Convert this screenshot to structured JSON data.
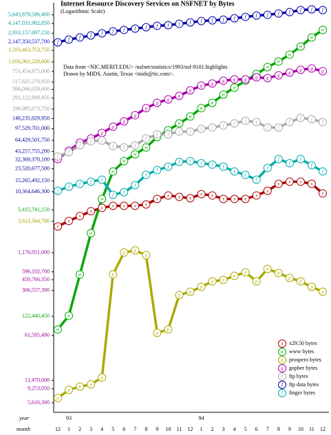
{
  "chart_data": {
    "type": "line",
    "title": "Internet Resource Discovery Services on NSFNET by Bytes",
    "subtitle": "(Logarithmic Scale)",
    "annotations": [
      "Data from <NIC.MERIT.EDU> /nsfnet/statistics/1993/nsf-9101.highlights",
      "Drawn by MIDS, Austin, Texas <mids@tic.com>."
    ],
    "year_label": "year",
    "month_label": "month",
    "years": [
      null,
      "93",
      null,
      null,
      null,
      null,
      null,
      null,
      null,
      null,
      null,
      null,
      null,
      "94",
      null,
      null,
      null,
      null,
      null,
      null,
      null,
      null,
      null,
      null,
      null
    ],
    "categories": [
      "12",
      "1",
      "2",
      "3",
      "4",
      "5",
      "6",
      "7",
      "8",
      "9",
      "10",
      "11",
      "12",
      "1",
      "2",
      "3",
      "4",
      "5",
      "6",
      "7",
      "8",
      "9",
      "10",
      "11",
      "12"
    ],
    "log_scale": true,
    "legend": "lower right",
    "ylim": [
      4000000,
      7500000000000
    ],
    "yticks": [
      {
        "value": 5643879586400,
        "label": "5,643,879,586,400",
        "color": "#009999"
      },
      {
        "value": 4147031902850,
        "label": "4,147,031,902,850",
        "color": "#009999"
      },
      {
        "value": 2933157697150,
        "label": "2,933,157,697,150",
        "color": "#009999"
      },
      {
        "value": 2147350537700,
        "label": "2,147,350,537,700",
        "color": "#0000cc"
      },
      {
        "value": 1593463753750,
        "label": "1,593,463,753,750",
        "color": "#a0a000"
      },
      {
        "value": 1056061229600,
        "label": "1,056,061,229,600",
        "color": "#a0a000"
      },
      {
        "value": 751454675000,
        "label": "751,454,675,000",
        "color": "#999999"
      },
      {
        "value": 517625276950,
        "label": "517,625,276,950",
        "color": "#999999"
      },
      {
        "value": 396066059600,
        "label": "396,066,059,600",
        "color": "#999999"
      },
      {
        "value": 291122949450,
        "label": "291,122,949,450",
        "color": "#999999"
      },
      {
        "value": 196095673750,
        "label": "196,095,673,750",
        "color": "#999999"
      },
      {
        "value": 140235929950,
        "label": "140,235,929,950",
        "color": "#000099"
      },
      {
        "value": 97529701000,
        "label": "97,529,701,000",
        "color": "#000099"
      },
      {
        "value": 64429501750,
        "label": "64,429,501,750",
        "color": "#000099"
      },
      {
        "value": 43257755200,
        "label": "43,257,755,200",
        "color": "#000099"
      },
      {
        "value": 32369370100,
        "label": "32,369,370,100",
        "color": "#000099"
      },
      {
        "value": 23520677500,
        "label": "23,520,677,500",
        "color": "#000099"
      },
      {
        "value": 15265492150,
        "label": "15,265,492,150",
        "color": "#000099"
      },
      {
        "value": 10364646300,
        "label": "10,364,646,300",
        "color": "#000099"
      },
      {
        "value": 5415741150,
        "label": "5,415,741,150",
        "color": "#00a000"
      },
      {
        "value": 3613564700,
        "label": "3,613,564,700",
        "color": "#a0a000"
      },
      {
        "value": 1176051600,
        "label": "1,176,051,600",
        "color": "#990099"
      },
      {
        "value": 596102700,
        "label": "596,102,700",
        "color": "#990099"
      },
      {
        "value": 450766350,
        "label": "450,766,350",
        "color": "#990099"
      },
      {
        "value": 306557300,
        "label": "306,557,300",
        "color": "#990099"
      },
      {
        "value": 122440450,
        "label": "122,440,450",
        "color": "#00a000"
      },
      {
        "value": 61595490,
        "label": "61,595,490",
        "color": "#990099"
      },
      {
        "value": 12470600,
        "label": "12,470,600",
        "color": "#990099"
      },
      {
        "value": 9253050,
        "label": "9,253,050",
        "color": "#990099"
      },
      {
        "value": 5616300,
        "label": "5,616,300",
        "color": "#990099"
      }
    ],
    "series": [
      {
        "name": "x29.50 bytes",
        "marker": "x",
        "color": "#aa0000",
        "values": [
          3010000000.0,
          3660000000.0,
          4350000000.0,
          5160000000.0,
          5820000000.0,
          6270000000.0,
          6270000000.0,
          6270000000.0,
          6580000000.0,
          8000000000.0,
          9060000000.0,
          8610000000.0,
          8200000000.0,
          9500000000.0,
          9060000000.0,
          8000000000.0,
          8000000000.0,
          8000000000.0,
          9060000000.0,
          10700000000.0,
          13700000000.0,
          14800000000.0,
          14800000000.0,
          13700000000.0,
          9750000000.0
        ]
      },
      {
        "name": "www bytes",
        "marker": "w",
        "color": "#00a800",
        "values": [
          76600000.0,
          125000000.0,
          543000000.0,
          2360000000.0,
          8000000000.0,
          21300000000.0,
          30800000000.0,
          39300000000.0,
          50200000000.0,
          72500000000.0,
          92500000000.0,
          118000000000.0,
          151000000000.0,
          203000000000.0,
          246000000000.0,
          330000000000.0,
          422000000000.0,
          539000000000.0,
          688000000000.0,
          879000000000.0,
          1070000000000.0,
          1370000000000.0,
          1830000000000.0,
          2520000000000.0,
          3300000000000.0
        ]
      },
      {
        "name": "prospero bytes",
        "marker": "p",
        "color": "#aaaa00",
        "values": [
          6640000.0,
          8900000.0,
          10000000.0,
          10800000.0,
          13800000.0,
          543000000.0,
          1190000000.0,
          1280000000.0,
          1080000000.0,
          67800000.0,
          76600000.0,
          261000000.0,
          294000000.0,
          349000000.0,
          425000000.0,
          447000000.0,
          517000000.0,
          584000000.0,
          425000000.0,
          660000000.0,
          570000000.0,
          480000000.0,
          425000000.0,
          349000000.0,
          294000000.0
        ]
      },
      {
        "name": "gopher bytes",
        "marker": "g",
        "color": "#aa00aa",
        "values": [
          33100000000.0,
          44500000000.0,
          59600000000.0,
          69000000000.0,
          84000000000.0,
          105000000000.0,
          127000000000.0,
          158000000000.0,
          203000000000.0,
          246000000000.0,
          278000000000.0,
          315000000000.0,
          383000000000.0,
          454000000000.0,
          489000000000.0,
          539000000000.0,
          566000000000.0,
          566000000000.0,
          610000000000.0,
          594000000000.0,
          655000000000.0,
          722000000000.0,
          796000000000.0,
          837000000000.0,
          759000000000.0
        ]
      },
      {
        "name": "ftp bytes",
        "marker": "f",
        "color": "#aaaaaa",
        "values": [
          36500000000.0,
          42300000000.0,
          54000000000.0,
          62600000000.0,
          64100000000.0,
          52700000000.0,
          50200000000.0,
          54000000000.0,
          69000000000.0,
          80000000000.0,
          80000000000.0,
          88100000000.0,
          88100000000.0,
          97200000000.0,
          102000000000.0,
          110000000000.0,
          118000000000.0,
          130000000000.0,
          124000000000.0,
          102000000000.0,
          102000000000.0,
          124000000000.0,
          144000000000.0,
          137000000000.0,
          124000000000.0
        ]
      },
      {
        "name": "ftp data bytes",
        "marker": "f",
        "color": "#0000aa",
        "values": [
          2120000000000.0,
          2340000000000.0,
          2520000000000.0,
          2710000000000.0,
          2920000000000.0,
          3140000000000.0,
          3300000000000.0,
          3460000000000.0,
          3630000000000.0,
          3820000000000.0,
          3910000000000.0,
          4100000000000.0,
          4310000000000.0,
          4530000000000.0,
          4640000000000.0,
          4750000000000.0,
          4990000000000.0,
          5250000000000.0,
          5510000000000.0,
          5650000000000.0,
          5930000000000.0,
          6220000000000.0,
          6700000000000.0,
          6870000000000.0,
          6700000000000.0
        ]
      },
      {
        "name": "finger bytes",
        "marker": "f",
        "color": "#00aaaa",
        "values": [
          10700000000.0,
          12400000000.0,
          13700000000.0,
          14800000000.0,
          15900000000.0,
          9280000000.0,
          10200000000.0,
          13100000000.0,
          18900000000.0,
          22400000000.0,
          25300000000.0,
          30000000000.0,
          30800000000.0,
          28600000000.0,
          27200000000.0,
          25300000000.0,
          21300000000.0,
          18900000000.0,
          15900000000.0,
          24100000000.0,
          33100000000.0,
          28600000000.0,
          33100000000.0,
          26600000000.0,
          21300000000.0
        ]
      }
    ]
  }
}
